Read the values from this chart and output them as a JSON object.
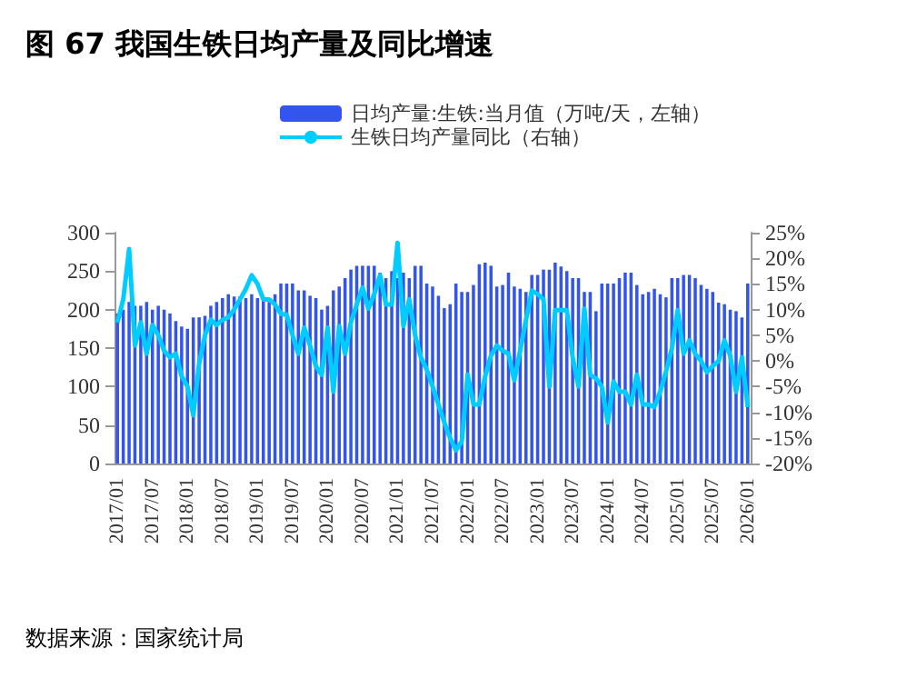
{
  "chart_data": {
    "type": "bar",
    "title": "图 67 我国生铁日均产量及同比增速",
    "annotations": [
      "数据来源：国家统计局"
    ],
    "categories": [
      "2017/01",
      null,
      null,
      null,
      null,
      null,
      "2017/07",
      null,
      null,
      null,
      null,
      null,
      "2018/01",
      null,
      null,
      null,
      null,
      null,
      "2018/07",
      null,
      null,
      null,
      null,
      null,
      "2019/01",
      null,
      null,
      null,
      null,
      null,
      "2019/07",
      null,
      null,
      null,
      null,
      null,
      "2020/01",
      null,
      null,
      null,
      null,
      null,
      "2020/07",
      null,
      null,
      null,
      null,
      null,
      "2021/01",
      null,
      null,
      null,
      null,
      null,
      "2021/07",
      null,
      null,
      null,
      null,
      null,
      "2022/01",
      null,
      null,
      null,
      null,
      null,
      "2022/07",
      null,
      null,
      null,
      null,
      null,
      "2023/01",
      null,
      null,
      null,
      null,
      null,
      "2023/07",
      null,
      null,
      null,
      null,
      null,
      "2024/01",
      null,
      null,
      null,
      null,
      null,
      "2024/07",
      null,
      null,
      null,
      null,
      null,
      "2025/01",
      null,
      null,
      null,
      null,
      null,
      "2025/07",
      null,
      null,
      null,
      null,
      null,
      "2026/01"
    ],
    "series": [
      {
        "name": "日均产量:生铁:当月值（万吨/天，左轴）",
        "color": "#3355ee",
        "values": [
          195,
          200,
          210,
          205,
          205,
          210,
          200,
          205,
          200,
          195,
          185,
          178,
          175,
          190,
          190,
          192,
          205,
          210,
          215,
          220,
          217,
          217,
          215,
          220,
          215,
          215,
          210,
          220,
          234,
          234,
          234,
          225,
          225,
          218,
          215,
          200,
          205,
          225,
          230,
          241,
          252,
          257,
          257,
          257,
          257,
          248,
          241,
          250,
          241,
          248,
          241,
          257,
          257,
          234,
          230,
          218,
          202,
          207,
          234,
          223,
          223,
          232,
          259,
          261,
          257,
          230,
          232,
          248,
          230,
          227,
          223,
          245,
          245,
          252,
          252,
          261,
          256,
          250,
          241,
          241,
          223,
          223,
          198,
          234,
          234,
          234,
          241,
          248,
          248,
          232,
          220,
          223,
          227,
          220,
          216,
          241,
          241,
          245,
          245,
          241,
          232,
          227,
          223,
          209,
          207,
          200,
          198,
          190,
          234
        ]
      },
      {
        "name": "生铁日均产量同比（右轴）",
        "type": "line",
        "axis": "y2",
        "color": "#00ccff",
        "values": [
          7.5,
          12,
          21.8,
          3,
          7.5,
          1.4,
          7,
          5,
          2,
          0.7,
          1.4,
          -3,
          -5,
          -10.6,
          -0.5,
          5,
          8,
          7,
          8,
          8.5,
          10,
          12,
          14,
          16.7,
          15,
          12,
          12,
          11,
          9.2,
          9,
          5,
          1.4,
          6.5,
          3,
          -1,
          -2.7,
          6.5,
          -6,
          6.8,
          1.4,
          7.5,
          11,
          14.3,
          10.2,
          13,
          16.7,
          11,
          11,
          23,
          6.8,
          12,
          5,
          0.7,
          -1.7,
          -5,
          -8.5,
          -12,
          -15,
          -17.4,
          -15.7,
          -2.7,
          -8.5,
          -8.5,
          -3,
          1,
          3,
          2,
          1.4,
          -3.8,
          2,
          8,
          13.7,
          13,
          12,
          -5,
          9.9,
          9.9,
          9.9,
          0.7,
          -5,
          10.2,
          -2.7,
          -3.4,
          -5,
          -12,
          -4,
          -6,
          -6,
          -8.5,
          -2.7,
          -8.5,
          -8.5,
          -9,
          -6,
          -2,
          2.4,
          9.9,
          1.4,
          4,
          1.4,
          0,
          -2.2,
          -1,
          0,
          4,
          1,
          -6,
          0.7,
          -9
        ]
      }
    ],
    "ylim": [
      0,
      300
    ],
    "yticks": [
      0,
      50,
      100,
      150,
      200,
      250,
      300
    ],
    "y2lim": [
      -20,
      25
    ],
    "y2ticks": [
      {
        "value": -20,
        "label": "-20%"
      },
      {
        "value": -15,
        "label": "-15%"
      },
      {
        "value": -10,
        "label": "-10%"
      },
      {
        "value": -5,
        "label": "-5%"
      },
      {
        "value": 0,
        "label": "0%"
      },
      {
        "value": 5,
        "label": "5%"
      },
      {
        "value": 10,
        "label": "10%"
      },
      {
        "value": 15,
        "label": "15%"
      },
      {
        "value": 20,
        "label": "20%"
      },
      {
        "value": 25,
        "label": "25%"
      }
    ],
    "legend": "top",
    "grid": false
  }
}
